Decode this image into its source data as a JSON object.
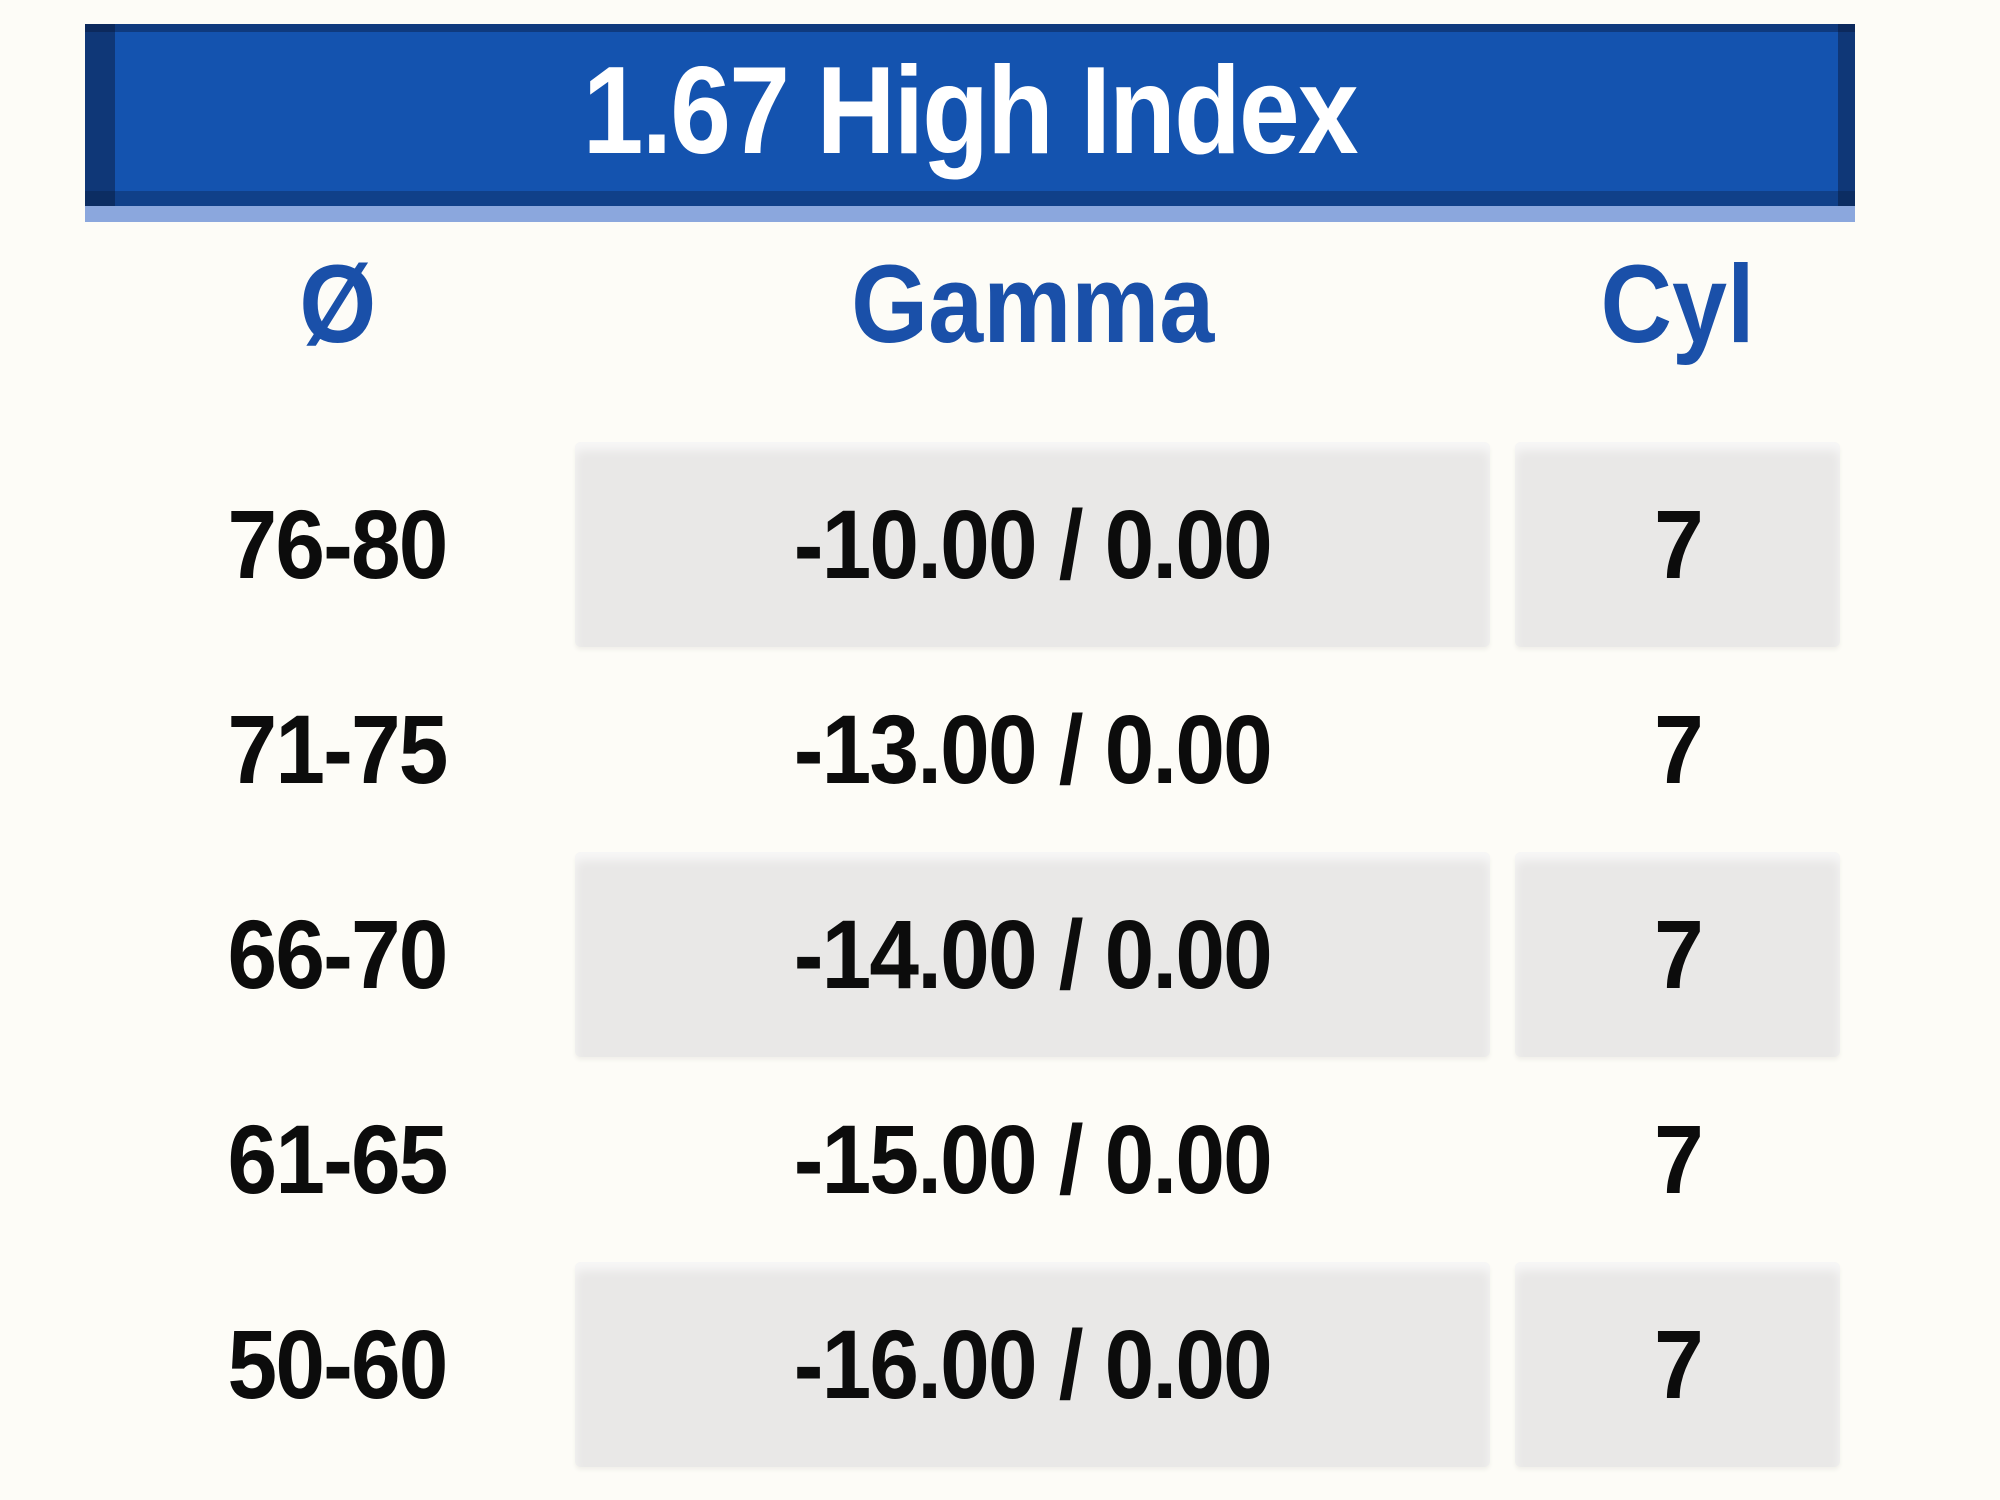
{
  "table": {
    "title": "1.67 High Index",
    "columns": [
      {
        "key": "diameter",
        "label": "Ø"
      },
      {
        "key": "gamma",
        "label": "Gamma"
      },
      {
        "key": "cyl",
        "label": "Cyl"
      }
    ],
    "rows": [
      {
        "diameter": "76-80",
        "gamma": "-10.00 / 0.00",
        "cyl": "7",
        "striped": true
      },
      {
        "diameter": "71-75",
        "gamma": "-13.00 / 0.00",
        "cyl": "7",
        "striped": false
      },
      {
        "diameter": "66-70",
        "gamma": "-14.00 / 0.00",
        "cyl": "7",
        "striped": true
      },
      {
        "diameter": "61-65",
        "gamma": "-15.00 / 0.00",
        "cyl": "7",
        "striped": false
      },
      {
        "diameter": "50-60",
        "gamma": "-16.00 / 0.00",
        "cyl": "7",
        "striped": true
      }
    ],
    "colors": {
      "header_bg": "#1453af",
      "header_edge": "#0e2a58",
      "header_text": "#ffffff",
      "accent_strip": "#8ba7dd",
      "column_header_text": "#1a50a9",
      "row_text": "#0c0c0c",
      "stripe_bg": "#e9e8e7",
      "page_bg": "#fdfcf7"
    }
  }
}
